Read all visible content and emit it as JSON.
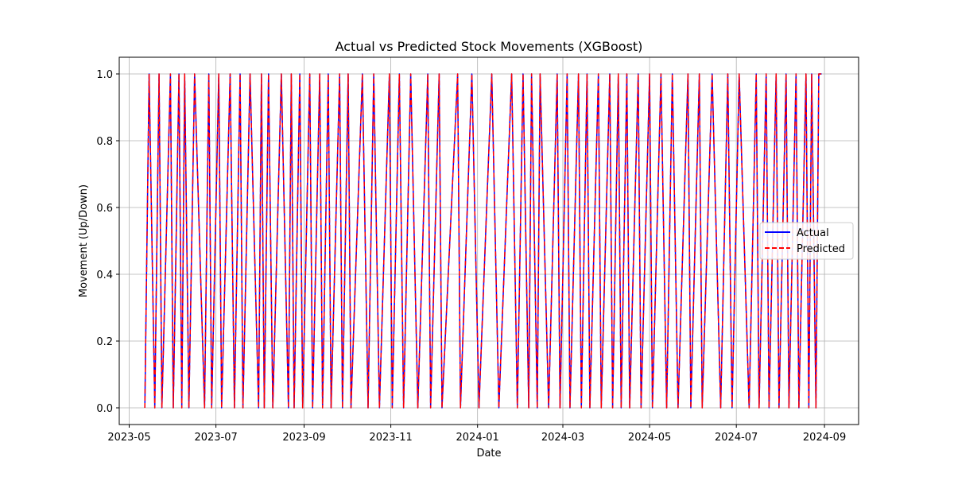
{
  "colors": {
    "actual": "#0000ff",
    "predicted": "#ff0000",
    "grid": "#b0b0b0",
    "axis": "#000000",
    "legend_border": "#cccccc"
  },
  "chart_data": {
    "type": "line",
    "title": "Actual vs Predicted Stock Movements (XGBoost)",
    "xlabel": "Date",
    "ylabel": "Movement (Up/Down)",
    "grid": true,
    "legend_position": "center-right",
    "xlim": [
      "2023-04-24",
      "2024-09-25"
    ],
    "ylim": [
      -0.05,
      1.05
    ],
    "x_ticks": [
      "2023-05",
      "2023-07",
      "2023-09",
      "2023-11",
      "2024-01",
      "2024-03",
      "2024-05",
      "2024-07",
      "2024-09"
    ],
    "y_ticks": [
      "0.0",
      "0.2",
      "0.4",
      "0.6",
      "0.8",
      "1.0"
    ],
    "series": [
      {
        "name": "Actual",
        "style": "solid",
        "x": [
          "2023-05-12",
          "2023-05-15",
          "2023-05-19",
          "2023-05-22",
          "2023-05-24",
          "2023-05-30",
          "2023-06-01",
          "2023-06-05",
          "2023-06-07",
          "2023-06-09",
          "2023-06-12",
          "2023-06-16",
          "2023-06-23",
          "2023-06-26",
          "2023-06-28",
          "2023-07-03",
          "2023-07-05",
          "2023-07-11",
          "2023-07-14",
          "2023-07-18",
          "2023-07-20",
          "2023-07-25",
          "2023-07-31",
          "2023-08-02",
          "2023-08-04",
          "2023-08-07",
          "2023-08-10",
          "2023-08-16",
          "2023-08-21",
          "2023-08-23",
          "2023-08-25",
          "2023-08-29",
          "2023-08-31",
          "2023-09-05",
          "2023-09-07",
          "2023-09-12",
          "2023-09-14",
          "2023-09-18",
          "2023-09-20",
          "2023-09-26",
          "2023-09-28",
          "2023-10-02",
          "2023-10-04",
          "2023-10-12",
          "2023-10-16",
          "2023-10-20",
          "2023-10-24",
          "2023-10-31",
          "2023-11-02",
          "2023-11-07",
          "2023-11-10",
          "2023-11-15",
          "2023-11-20",
          "2023-11-27",
          "2023-11-29",
          "2023-12-05",
          "2023-12-07",
          "2023-12-18",
          "2023-12-20",
          "2023-12-28",
          "2024-01-02",
          "2024-01-11",
          "2024-01-16",
          "2024-01-25",
          "2024-01-29",
          "2024-02-02",
          "2024-02-06",
          "2024-02-08",
          "2024-02-12",
          "2024-02-14",
          "2024-02-20",
          "2024-02-26",
          "2024-02-28",
          "2024-03-04",
          "2024-03-06",
          "2024-03-12",
          "2024-03-14",
          "2024-03-18",
          "2024-03-20",
          "2024-03-26",
          "2024-03-28",
          "2024-04-03",
          "2024-04-05",
          "2024-04-09",
          "2024-04-11",
          "2024-04-15",
          "2024-04-17",
          "2024-04-23",
          "2024-04-25",
          "2024-05-01",
          "2024-05-03",
          "2024-05-09",
          "2024-05-13",
          "2024-05-17",
          "2024-05-21",
          "2024-05-28",
          "2024-05-30",
          "2024-06-05",
          "2024-06-07",
          "2024-06-14",
          "2024-06-20",
          "2024-06-25",
          "2024-06-28",
          "2024-07-03",
          "2024-07-10",
          "2024-07-15",
          "2024-07-17",
          "2024-07-22",
          "2024-07-24",
          "2024-07-29",
          "2024-07-31",
          "2024-08-05",
          "2024-08-07",
          "2024-08-12",
          "2024-08-14",
          "2024-08-19",
          "2024-08-21",
          "2024-08-23",
          "2024-08-26",
          "2024-08-28",
          "2024-08-30"
        ],
        "values": [
          0,
          1,
          0,
          1,
          0,
          1,
          0,
          1,
          0,
          1,
          0,
          1,
          0,
          1,
          0,
          1,
          0,
          1,
          0,
          1,
          0,
          1,
          0,
          1,
          0,
          1,
          0,
          1,
          0,
          1,
          0,
          1,
          0,
          1,
          0,
          1,
          0,
          1,
          0,
          1,
          0,
          1,
          0,
          1,
          0,
          1,
          0,
          1,
          0,
          1,
          0,
          1,
          0,
          1,
          0,
          1,
          0,
          1,
          0,
          1,
          0,
          1,
          0,
          1,
          0,
          1,
          0,
          1,
          0,
          1,
          0,
          1,
          0,
          1,
          0,
          1,
          0,
          1,
          0,
          1,
          0,
          1,
          0,
          1,
          0,
          1,
          0,
          1,
          0,
          1,
          0,
          1,
          0,
          1,
          0,
          1,
          0,
          1,
          0,
          1,
          0,
          1,
          0,
          1,
          0,
          1,
          0,
          1,
          0,
          1,
          0,
          1,
          0,
          1,
          0,
          1,
          0,
          1,
          0,
          1,
          1
        ]
      },
      {
        "name": "Predicted",
        "style": "dashed",
        "x": [
          "2023-05-12",
          "2023-05-15",
          "2023-05-19",
          "2023-05-22",
          "2023-05-24",
          "2023-05-30",
          "2023-06-01",
          "2023-06-05",
          "2023-06-07",
          "2023-06-09",
          "2023-06-12",
          "2023-06-16",
          "2023-06-23",
          "2023-06-26",
          "2023-06-28",
          "2023-07-03",
          "2023-07-05",
          "2023-07-11",
          "2023-07-14",
          "2023-07-18",
          "2023-07-20",
          "2023-07-25",
          "2023-07-31",
          "2023-08-02",
          "2023-08-04",
          "2023-08-07",
          "2023-08-10",
          "2023-08-16",
          "2023-08-21",
          "2023-08-23",
          "2023-08-25",
          "2023-08-29",
          "2023-08-31",
          "2023-09-05",
          "2023-09-07",
          "2023-09-12",
          "2023-09-14",
          "2023-09-18",
          "2023-09-20",
          "2023-09-26",
          "2023-09-28",
          "2023-10-02",
          "2023-10-04",
          "2023-10-12",
          "2023-10-16",
          "2023-10-20",
          "2023-10-24",
          "2023-10-31",
          "2023-11-02",
          "2023-11-07",
          "2023-11-10",
          "2023-11-15",
          "2023-11-20",
          "2023-11-27",
          "2023-11-29",
          "2023-12-05",
          "2023-12-07",
          "2023-12-18",
          "2023-12-20",
          "2023-12-28",
          "2024-01-02",
          "2024-01-11",
          "2024-01-16",
          "2024-01-25",
          "2024-01-29",
          "2024-02-02",
          "2024-02-06",
          "2024-02-08",
          "2024-02-12",
          "2024-02-14",
          "2024-02-20",
          "2024-02-26",
          "2024-02-28",
          "2024-03-04",
          "2024-03-06",
          "2024-03-12",
          "2024-03-14",
          "2024-03-18",
          "2024-03-20",
          "2024-03-26",
          "2024-03-28",
          "2024-04-03",
          "2024-04-05",
          "2024-04-09",
          "2024-04-11",
          "2024-04-15",
          "2024-04-17",
          "2024-04-23",
          "2024-04-25",
          "2024-05-01",
          "2024-05-03",
          "2024-05-09",
          "2024-05-13",
          "2024-05-17",
          "2024-05-21",
          "2024-05-28",
          "2024-05-30",
          "2024-06-05",
          "2024-06-07",
          "2024-06-14",
          "2024-06-20",
          "2024-06-25",
          "2024-06-28",
          "2024-07-03",
          "2024-07-10",
          "2024-07-15",
          "2024-07-17",
          "2024-07-22",
          "2024-07-24",
          "2024-07-29",
          "2024-07-31",
          "2024-08-05",
          "2024-08-07",
          "2024-08-12",
          "2024-08-14",
          "2024-08-19",
          "2024-08-21",
          "2024-08-23",
          "2024-08-26",
          "2024-08-28",
          "2024-08-30"
        ],
        "values": [
          0,
          1,
          0,
          1,
          0,
          1,
          0,
          1,
          0,
          1,
          0,
          1,
          0,
          1,
          0,
          1,
          0,
          1,
          0,
          1,
          0,
          1,
          0,
          1,
          0,
          1,
          0,
          1,
          0,
          1,
          0,
          1,
          0,
          1,
          0,
          1,
          0,
          1,
          0,
          1,
          0,
          1,
          0,
          1,
          0,
          1,
          0,
          1,
          0,
          1,
          0,
          1,
          0,
          1,
          0,
          1,
          0,
          1,
          0,
          1,
          0,
          1,
          0,
          1,
          0,
          1,
          0,
          1,
          0,
          1,
          0,
          1,
          0,
          1,
          0,
          1,
          0,
          1,
          0,
          1,
          0,
          1,
          0,
          1,
          0,
          1,
          0,
          1,
          0,
          1,
          0,
          1,
          0,
          1,
          0,
          1,
          0,
          1,
          0,
          1,
          0,
          1,
          0,
          1,
          0,
          1,
          0,
          1,
          0,
          1,
          0,
          1,
          0,
          1,
          0,
          1,
          0,
          1,
          0,
          1,
          1
        ]
      }
    ]
  }
}
